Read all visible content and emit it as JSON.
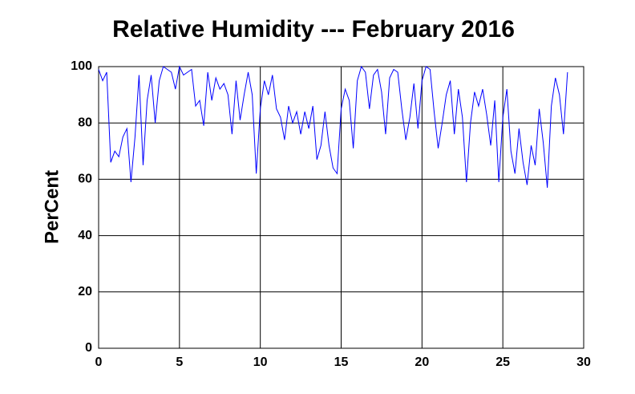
{
  "chart_data": {
    "type": "line",
    "title": "Relative Humidity --- February 2016",
    "y_label": "PerCent",
    "x": [
      0,
      0.25,
      0.5,
      0.75,
      1,
      1.25,
      1.5,
      1.75,
      2,
      2.25,
      2.5,
      2.75,
      3,
      3.25,
      3.5,
      3.75,
      4,
      4.25,
      4.5,
      4.75,
      5,
      5.25,
      5.5,
      5.75,
      6,
      6.25,
      6.5,
      6.75,
      7,
      7.25,
      7.5,
      7.75,
      8,
      8.25,
      8.5,
      8.75,
      9,
      9.25,
      9.5,
      9.75,
      10,
      10.25,
      10.5,
      10.75,
      11,
      11.25,
      11.5,
      11.75,
      12,
      12.25,
      12.5,
      12.75,
      13,
      13.25,
      13.5,
      13.75,
      14,
      14.25,
      14.5,
      14.75,
      15,
      15.25,
      15.5,
      15.75,
      16,
      16.25,
      16.5,
      16.75,
      17,
      17.25,
      17.5,
      17.75,
      18,
      18.25,
      18.5,
      18.75,
      19,
      19.25,
      19.5,
      19.75,
      20,
      20.25,
      20.5,
      20.75,
      21,
      21.25,
      21.5,
      21.75,
      22,
      22.25,
      22.5,
      22.75,
      23,
      23.25,
      23.5,
      23.75,
      24,
      24.25,
      24.5,
      24.75,
      25,
      25.25,
      25.5,
      25.75,
      26,
      26.25,
      26.5,
      26.75,
      27,
      27.25,
      27.5,
      27.75,
      28,
      28.25,
      28.5,
      28.75,
      29
    ],
    "series": [
      {
        "color": "#0000ff",
        "values": [
          99,
          95,
          98,
          66,
          70,
          68,
          75,
          78,
          59,
          75,
          97,
          65,
          88,
          97,
          80,
          95,
          100,
          99,
          98,
          92,
          100,
          97,
          98,
          99,
          86,
          88,
          79,
          98,
          88,
          96,
          92,
          94,
          90,
          76,
          95,
          81,
          90,
          98,
          90,
          62,
          85,
          95,
          90,
          97,
          85,
          82,
          74,
          86,
          80,
          84,
          76,
          84,
          78,
          86,
          67,
          72,
          84,
          72,
          64,
          62,
          85,
          92,
          88,
          71,
          95,
          100,
          98,
          85,
          97,
          99,
          91,
          76,
          96,
          99,
          98,
          85,
          74,
          82,
          94,
          78,
          95,
          100,
          99,
          84,
          71,
          80,
          90,
          95,
          76,
          92,
          82,
          59,
          80,
          91,
          86,
          92,
          83,
          72,
          88,
          59,
          82,
          92,
          70,
          62,
          78,
          66,
          58,
          72,
          65,
          85,
          73,
          57,
          86,
          96,
          90,
          76,
          98
        ]
      }
    ],
    "xlim": [
      0,
      30
    ],
    "xticks": [
      0,
      5,
      10,
      15,
      20,
      25,
      30
    ],
    "ylim": [
      0,
      100
    ],
    "yticks": [
      0,
      20,
      40,
      60,
      80,
      100
    ],
    "grid": true
  }
}
